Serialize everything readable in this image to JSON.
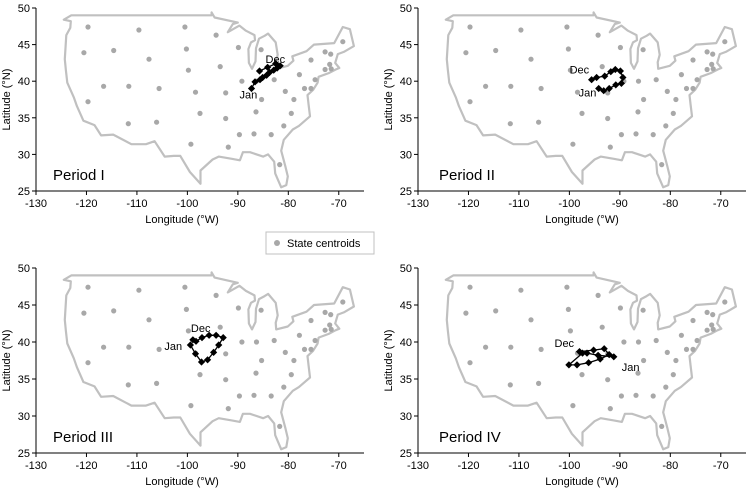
{
  "legend": {
    "label": "State centroids",
    "color": "#a8a8a8"
  },
  "colors": {
    "outline": "#c0c0c0",
    "centroid": "#a8a8a8",
    "track": "#000000"
  },
  "chart_data": [
    {
      "type": "scatter",
      "title": "Period I",
      "xlabel": "Longitude (°W)",
      "ylabel": "Latitude (°N)",
      "xlim": [
        -130,
        -65
      ],
      "ylim": [
        25,
        50
      ],
      "xticks": [
        -130,
        -120,
        -110,
        -100,
        -90,
        -80,
        -70
      ],
      "yticks": [
        25,
        30,
        35,
        40,
        45,
        50
      ],
      "start_label": "Jan",
      "end_label": "Dec",
      "series": [
        {
          "values": [
            [
              -87.3,
              39.0
            ],
            [
              -86.6,
              39.9
            ],
            [
              -85.6,
              40.2
            ],
            [
              -85.1,
              40.5
            ],
            [
              -84.3,
              40.8
            ],
            [
              -83.7,
              41.2
            ],
            [
              -82.9,
              41.5
            ],
            [
              -82.2,
              41.8
            ],
            [
              -81.6,
              42.1
            ],
            [
              -82.5,
              42.4
            ],
            [
              -84.1,
              41.9
            ],
            [
              -85.7,
              41.4
            ]
          ]
        }
      ]
    },
    {
      "type": "scatter",
      "title": "Period II",
      "xlabel": "Longitude (°W)",
      "ylabel": "Latitude (°N)",
      "xlim": [
        -130,
        -65
      ],
      "ylim": [
        25,
        50
      ],
      "xticks": [
        -130,
        -120,
        -110,
        -100,
        -90,
        -80,
        -70
      ],
      "yticks": [
        25,
        30,
        35,
        40,
        45,
        50
      ],
      "start_label": "Jan",
      "end_label": "Dec",
      "series": [
        {
          "values": [
            [
              -94.2,
              39.0
            ],
            [
              -93.2,
              38.7
            ],
            [
              -92.1,
              39.0
            ],
            [
              -90.8,
              39.5
            ],
            [
              -89.7,
              39.7
            ],
            [
              -89.4,
              40.5
            ],
            [
              -89.9,
              41.4
            ],
            [
              -90.9,
              41.6
            ],
            [
              -91.8,
              41.3
            ],
            [
              -93.0,
              40.7
            ],
            [
              -94.6,
              40.5
            ],
            [
              -95.6,
              40.2
            ]
          ]
        }
      ]
    },
    {
      "type": "scatter",
      "title": "Period III",
      "xlabel": "Longitude (°W)",
      "ylabel": "Latitude (°N)",
      "xlim": [
        -130,
        -65
      ],
      "ylim": [
        25,
        50
      ],
      "xticks": [
        -130,
        -120,
        -110,
        -100,
        -90,
        -80,
        -70
      ],
      "yticks": [
        25,
        30,
        35,
        40,
        45,
        50
      ],
      "start_label": "Jan",
      "end_label": "Dec",
      "series": [
        {
          "values": [
            [
              -99.4,
              39.6
            ],
            [
              -98.4,
              38.4
            ],
            [
              -97.2,
              37.3
            ],
            [
              -96.0,
              37.6
            ],
            [
              -94.8,
              38.6
            ],
            [
              -93.8,
              39.6
            ],
            [
              -92.9,
              40.6
            ],
            [
              -94.3,
              40.9
            ],
            [
              -95.7,
              40.9
            ],
            [
              -97.1,
              40.6
            ],
            [
              -98.3,
              40.1
            ],
            [
              -98.9,
              40.3
            ]
          ]
        }
      ]
    },
    {
      "type": "scatter",
      "title": "Period IV",
      "xlabel": "Longitude (°W)",
      "ylabel": "Latitude (°N)",
      "xlim": [
        -130,
        -65
      ],
      "ylim": [
        25,
        50
      ],
      "xticks": [
        -130,
        -120,
        -110,
        -100,
        -90,
        -80,
        -70
      ],
      "yticks": [
        25,
        30,
        35,
        40,
        45,
        50
      ],
      "start_label": "Jan",
      "end_label": "Dec",
      "series": [
        {
          "values": [
            [
              -91.2,
              38.0
            ],
            [
              -94.3,
              38.2
            ],
            [
              -96.5,
              38.5
            ],
            [
              -98.0,
              38.7
            ],
            [
              -95.2,
              38.9
            ],
            [
              -93.1,
              39.1
            ],
            [
              -92.1,
              38.3
            ],
            [
              -93.9,
              37.7
            ],
            [
              -96.2,
              37.2
            ],
            [
              -98.5,
              36.9
            ],
            [
              -100.1,
              36.9
            ],
            [
              -97.4,
              38.5
            ]
          ]
        }
      ]
    }
  ],
  "state_centroids": [
    [
      -119.7,
      47.4
    ],
    [
      -120.5,
      43.9
    ],
    [
      -119.7,
      37.2
    ],
    [
      -116.6,
      39.3
    ],
    [
      -114.6,
      44.2
    ],
    [
      -111.6,
      39.3
    ],
    [
      -111.7,
      34.2
    ],
    [
      -109.6,
      47.0
    ],
    [
      -107.6,
      43.0
    ],
    [
      -105.6,
      39.0
    ],
    [
      -106.1,
      34.4
    ],
    [
      -100.5,
      47.4
    ],
    [
      -100.2,
      44.4
    ],
    [
      -99.8,
      41.5
    ],
    [
      -98.4,
      38.5
    ],
    [
      -97.5,
      35.6
    ],
    [
      -99.3,
      31.4
    ],
    [
      -94.3,
      46.3
    ],
    [
      -93.5,
      42.0
    ],
    [
      -92.4,
      38.4
    ],
    [
      -92.4,
      34.9
    ],
    [
      -91.9,
      31.0
    ],
    [
      -89.9,
      44.6
    ],
    [
      -89.2,
      40.0
    ],
    [
      -86.3,
      40.0
    ],
    [
      -85.4,
      44.3
    ],
    [
      -82.8,
      40.2
    ],
    [
      -85.3,
      37.5
    ],
    [
      -86.4,
      35.8
    ],
    [
      -89.7,
      32.7
    ],
    [
      -86.8,
      32.8
    ],
    [
      -83.4,
      32.7
    ],
    [
      -81.7,
      28.6
    ],
    [
      -80.9,
      33.9
    ],
    [
      -79.4,
      35.6
    ],
    [
      -78.9,
      37.5
    ],
    [
      -80.6,
      38.6
    ],
    [
      -77.8,
      40.9
    ],
    [
      -75.5,
      42.9
    ],
    [
      -72.7,
      44.0
    ],
    [
      -71.6,
      43.7
    ],
    [
      -69.2,
      45.4
    ],
    [
      -71.8,
      42.3
    ],
    [
      -71.5,
      41.7
    ],
    [
      -72.7,
      41.6
    ],
    [
      -74.7,
      40.2
    ],
    [
      -75.5,
      39.0
    ],
    [
      -76.8,
      39.0
    ]
  ]
}
